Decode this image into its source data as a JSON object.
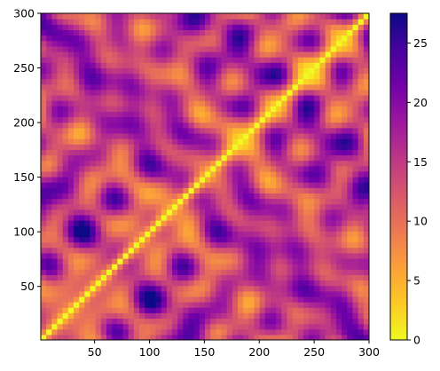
{
  "chart_data": {
    "type": "heatmap",
    "title": "",
    "xlabel": "",
    "ylabel": "",
    "x_ticks": [
      50,
      100,
      150,
      200,
      250,
      300
    ],
    "y_ticks": [
      50,
      100,
      150,
      200,
      250,
      300
    ],
    "xlim": [
      1,
      300
    ],
    "ylim": [
      1,
      300
    ],
    "colorbar": {
      "colormap": "plasma_r",
      "range": [
        0,
        27.5
      ],
      "ticks": [
        0,
        5,
        10,
        15,
        20,
        25
      ]
    },
    "description_values": {
      "diagonal_value": 0,
      "max_value": 27.5
    },
    "colormap_stops": [
      "#f0f921",
      "#fdca26",
      "#fb9f3a",
      "#ed7953",
      "#d8576b",
      "#bd3786",
      "#9c179e",
      "#7201a8",
      "#46039f",
      "#0d0887"
    ]
  }
}
